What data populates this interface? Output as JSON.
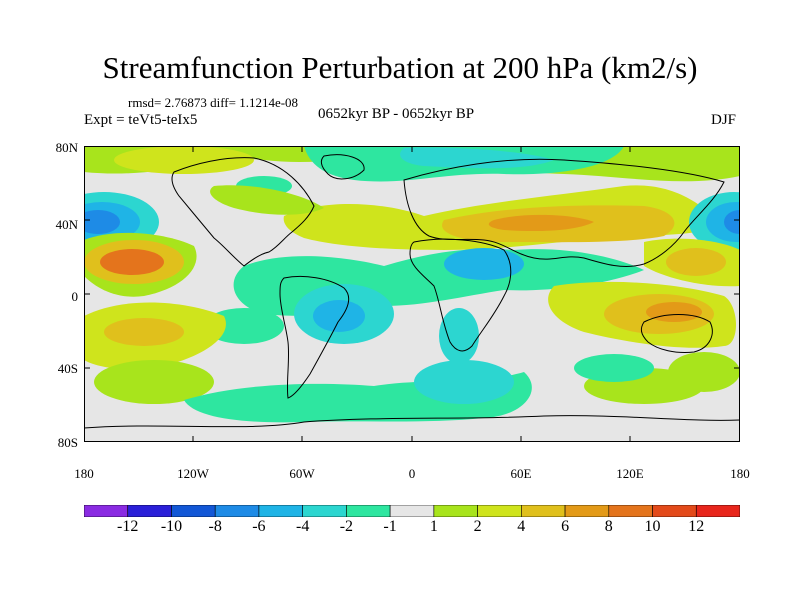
{
  "title": "Streamfunction Perturbation at 200 hPa (km2/s)",
  "rmsd_text": "rmsd= 2.76873  diff= 1.1214e-08",
  "experiment": "Expt = teVt5-teIx5",
  "period": "0652kyr BP - 0652kyr BP",
  "season": "DJF",
  "lat_labels": [
    "80N",
    "40N",
    "0",
    "40S",
    "80S"
  ],
  "lon_labels": [
    "180",
    "120W",
    "60W",
    "0",
    "60E",
    "120E",
    "180"
  ],
  "colorbar": {
    "labels": [
      "-12",
      "-10",
      "-8",
      "-6",
      "-4",
      "-2",
      "-1",
      "1",
      "2",
      "4",
      "6",
      "8",
      "10",
      "12"
    ],
    "colors": [
      "#8a2be2",
      "#2a1fd8",
      "#1257d6",
      "#1e8be6",
      "#1fb4e6",
      "#2cd6d0",
      "#2ee6a0",
      "#e6e6e6",
      "#a8e41c",
      "#cfe41c",
      "#e0c01c",
      "#e39a18",
      "#e4741c",
      "#e34a1a",
      "#e8261c"
    ]
  },
  "colors": {
    "neutral": "#e6e6e6",
    "coast": "#000000"
  }
}
